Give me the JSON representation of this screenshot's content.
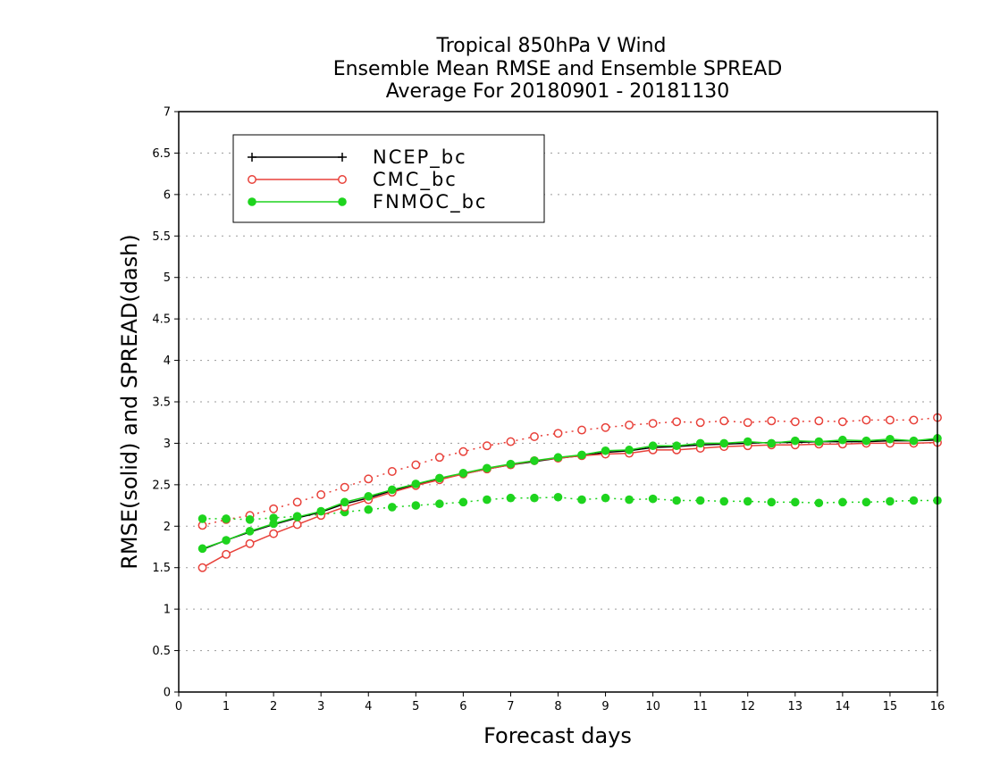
{
  "chart_data": {
    "type": "line",
    "title": [
      "Tropical 850hPa V Wind",
      "Ensemble Mean RMSE and Ensemble SPREAD",
      "Average For 20180901 - 20181130"
    ],
    "xlabel": "Forecast days",
    "ylabel": "RMSE(solid) and SPREAD(dash)",
    "xlim": [
      0,
      16
    ],
    "ylim": [
      0,
      7
    ],
    "xticks": [
      "0",
      "1",
      "2",
      "3",
      "4",
      "5",
      "6",
      "7",
      "8",
      "9",
      "10",
      "11",
      "12",
      "13",
      "14",
      "15",
      "16"
    ],
    "yticks": [
      "0",
      "0.5",
      "1",
      "1.5",
      "2",
      "2.5",
      "3",
      "3.5",
      "4",
      "4.5",
      "5",
      "5.5",
      "6",
      "6.5",
      "7"
    ],
    "grid": "horizontal dotted",
    "legend_position": "top-left",
    "x": [
      0.5,
      1,
      1.5,
      2,
      2.5,
      3,
      3.5,
      4,
      4.5,
      5,
      5.5,
      6,
      6.5,
      7,
      7.5,
      8,
      8.5,
      9,
      9.5,
      10,
      10.5,
      11,
      11.5,
      12,
      12.5,
      13,
      13.5,
      14,
      14.5,
      15,
      15.5,
      16
    ],
    "series": [
      {
        "name": "NCEP_bc",
        "marker": "plus",
        "color": "#000000",
        "rmse": [
          1.72,
          1.83,
          1.93,
          2.02,
          2.1,
          2.17,
          2.27,
          2.34,
          2.43,
          2.5,
          2.57,
          2.63,
          2.69,
          2.74,
          2.78,
          2.82,
          2.85,
          2.89,
          2.91,
          2.95,
          2.96,
          2.98,
          2.99,
          3.0,
          3.01,
          3.01,
          3.02,
          3.02,
          3.02,
          3.03,
          3.03,
          3.04
        ],
        "spread": []
      },
      {
        "name": "CMC_bc",
        "marker": "open-circle",
        "color": "#e8413a",
        "rmse": [
          1.5,
          1.66,
          1.79,
          1.91,
          2.02,
          2.13,
          2.23,
          2.32,
          2.41,
          2.49,
          2.56,
          2.63,
          2.69,
          2.74,
          2.79,
          2.82,
          2.85,
          2.87,
          2.88,
          2.92,
          2.92,
          2.94,
          2.96,
          2.97,
          2.98,
          2.98,
          2.99,
          2.99,
          3.0,
          3.0,
          3.0,
          3.01
        ],
        "spread": [
          2.01,
          2.08,
          2.13,
          2.21,
          2.29,
          2.38,
          2.47,
          2.57,
          2.66,
          2.74,
          2.83,
          2.9,
          2.97,
          3.02,
          3.08,
          3.12,
          3.16,
          3.19,
          3.22,
          3.24,
          3.26,
          3.25,
          3.27,
          3.25,
          3.27,
          3.26,
          3.27,
          3.26,
          3.28,
          3.28,
          3.28,
          3.31
        ]
      },
      {
        "name": "FNMOC_bc",
        "marker": "filled-circle",
        "color": "#1ed41e",
        "rmse": [
          1.73,
          1.83,
          1.94,
          2.03,
          2.11,
          2.18,
          2.29,
          2.36,
          2.44,
          2.51,
          2.58,
          2.64,
          2.7,
          2.75,
          2.79,
          2.83,
          2.86,
          2.91,
          2.92,
          2.97,
          2.97,
          3.0,
          3.0,
          3.02,
          3.0,
          3.03,
          3.02,
          3.04,
          3.03,
          3.05,
          3.03,
          3.06
        ],
        "spread": [
          2.09,
          2.09,
          2.08,
          2.1,
          2.12,
          2.14,
          2.17,
          2.2,
          2.23,
          2.25,
          2.27,
          2.29,
          2.32,
          2.34,
          2.34,
          2.35,
          2.32,
          2.34,
          2.32,
          2.33,
          2.31,
          2.31,
          2.3,
          2.3,
          2.29,
          2.29,
          2.28,
          2.29,
          2.29,
          2.3,
          2.31,
          2.31
        ]
      }
    ]
  }
}
